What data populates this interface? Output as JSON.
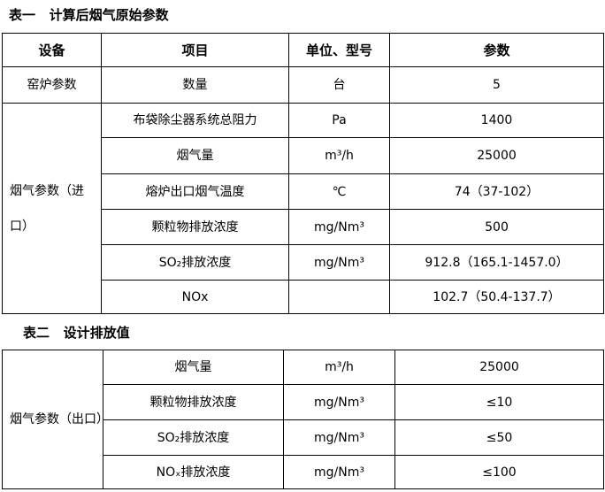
{
  "table1": {
    "title": "表一   计算后烟气原始参数",
    "headers": [
      "设备",
      "项目",
      "单位、型号",
      "参数"
    ],
    "kiln": {
      "equipment": "窑炉参数",
      "item": "数量",
      "unit": "台",
      "value": "5"
    },
    "group_label": "烟气参数（进口）",
    "rows": [
      {
        "item": "布袋除尘器系统总阻力",
        "unit": "Pa",
        "value": "1400"
      },
      {
        "item": "烟气量",
        "unit": "m³/h",
        "value": "25000"
      },
      {
        "item": "熔炉出口烟气温度",
        "unit": "℃",
        "value": "74（37-102）"
      },
      {
        "item": "颗粒物排放浓度",
        "unit": "mg/Nm³",
        "value": "500"
      },
      {
        "item": "SO₂排放浓度",
        "unit": "mg/Nm³",
        "value": "912.8（165.1-1457.0）"
      },
      {
        "item": "NOx",
        "unit": "",
        "value": "102.7（50.4-137.7）"
      }
    ]
  },
  "table2": {
    "title": "表二   设计排放值",
    "group_label": "烟气参数（出口）",
    "rows": [
      {
        "item": "烟气量",
        "unit": "m³/h",
        "value": "25000"
      },
      {
        "item": "颗粒物排放浓度",
        "unit": "mg/Nm³",
        "value": "≤10"
      },
      {
        "item": "SO₂排放浓度",
        "unit": "mg/Nm³",
        "value": "≤50"
      },
      {
        "item": "NOₓ排放浓度",
        "unit": "mg/Nm³",
        "value": "≤100"
      }
    ]
  }
}
